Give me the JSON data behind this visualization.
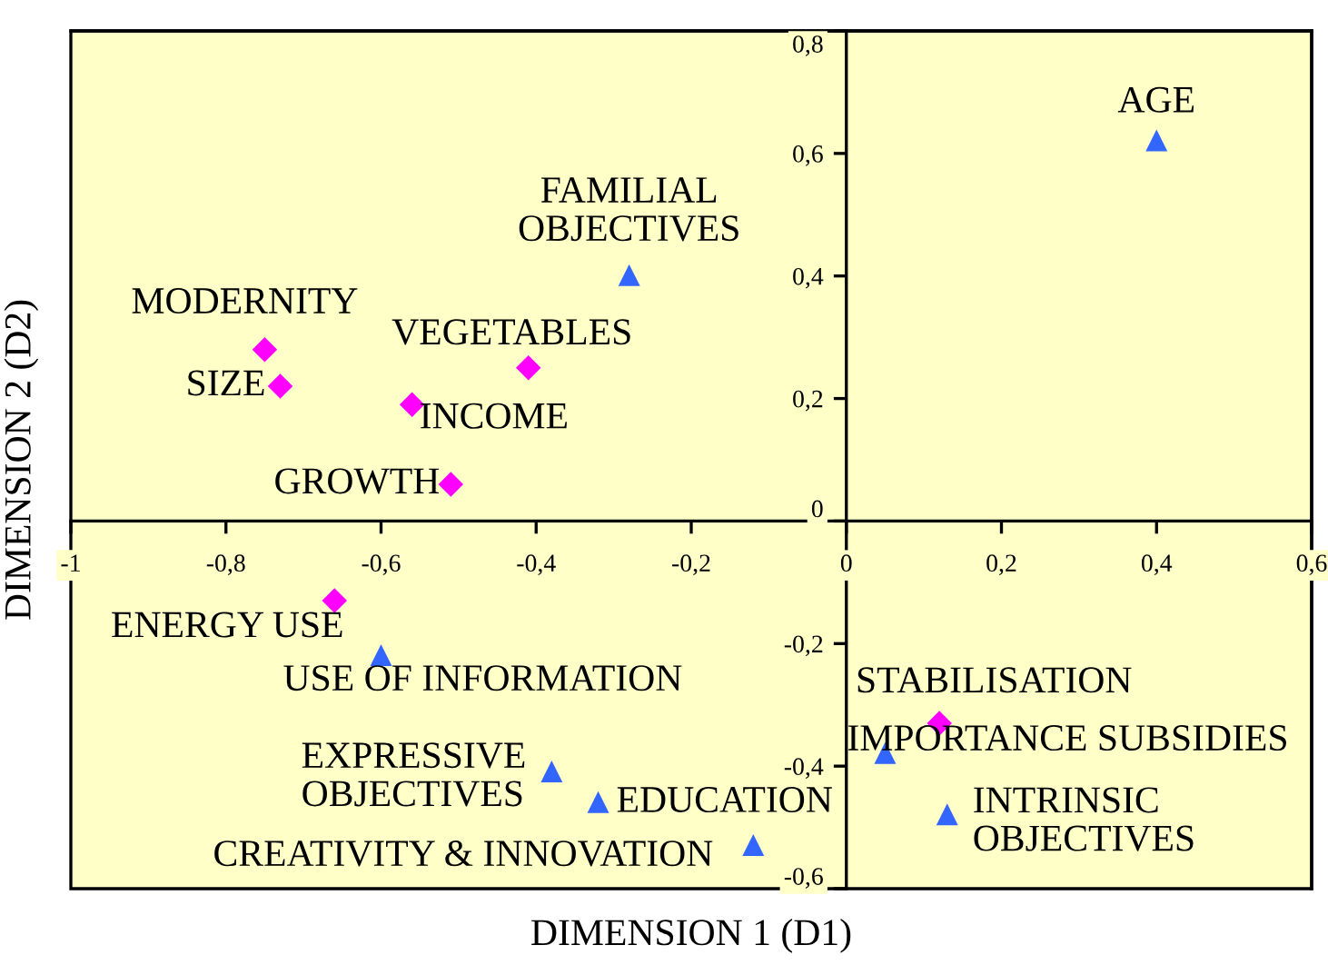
{
  "chart_data": {
    "type": "scatter",
    "xlabel": "DIMENSION 1 (D1)",
    "ylabel": "DIMENSION 2 (D2)",
    "xlim": [
      -1,
      0.6
    ],
    "ylim": [
      -0.6,
      0.8
    ],
    "xticks": [
      {
        "value": -1,
        "label": "-1"
      },
      {
        "value": -0.8,
        "label": "-0,8"
      },
      {
        "value": -0.6,
        "label": "-0,6"
      },
      {
        "value": -0.4,
        "label": "-0,4"
      },
      {
        "value": -0.2,
        "label": "-0,2"
      },
      0,
      {
        "value": 0.2,
        "label": "0,2"
      },
      {
        "value": 0.4,
        "label": "0,4"
      },
      {
        "value": 0.6,
        "label": "0,6"
      }
    ],
    "yticks": [
      {
        "value": -0.6,
        "label": "-0,6"
      },
      {
        "value": -0.4,
        "label": "-0,4"
      },
      {
        "value": -0.2,
        "label": "-0,2"
      },
      0,
      {
        "value": 0.2,
        "label": "0,2"
      },
      {
        "value": 0.4,
        "label": "0,4"
      },
      {
        "value": 0.6,
        "label": "0,6"
      },
      {
        "value": 0.8,
        "label": "0,8"
      }
    ],
    "grid": false,
    "legend": false,
    "series": [
      {
        "color": "#ff00ff",
        "marker": "diamond",
        "x": [
          -0.75,
          -0.73,
          -0.56,
          -0.41,
          -0.51,
          -0.66,
          0.12
        ],
        "values": [
          0.28,
          0.22,
          0.19,
          0.25,
          0.06,
          -0.13,
          -0.33
        ]
      },
      {
        "color": "#3366ff",
        "marker": "triangle",
        "x": [
          0.4,
          -0.28,
          -0.6,
          -0.38,
          -0.32,
          -0.12,
          0.05,
          0.13
        ],
        "values": [
          0.62,
          0.4,
          -0.22,
          -0.41,
          -0.46,
          -0.53,
          -0.38,
          -0.48
        ]
      }
    ],
    "annotations": [
      {
        "text": "AGE",
        "x": 0.4,
        "y": 0.62
      },
      {
        "text": "FAMILIAL\nOBJECTIVES",
        "x": -0.28,
        "y": 0.4
      },
      {
        "text": "MODERNITY",
        "x": -0.75,
        "y": 0.28
      },
      {
        "text": "VEGETABLES",
        "x": -0.41,
        "y": 0.25
      },
      {
        "text": "SIZE",
        "x": -0.73,
        "y": 0.22
      },
      {
        "text": "INCOME",
        "x": -0.56,
        "y": 0.19
      },
      {
        "text": "GROWTH",
        "x": -0.51,
        "y": 0.06
      },
      {
        "text": "ENERGY USE",
        "x": -0.66,
        "y": -0.13
      },
      {
        "text": "USE OF INFORMATION",
        "x": -0.6,
        "y": -0.22
      },
      {
        "text": "STABILISATION",
        "x": 0.12,
        "y": -0.33
      },
      {
        "text": "IMPORTANCE SUBSIDIES",
        "x": 0.05,
        "y": -0.38
      },
      {
        "text": "EXPRESSIVE\nOBJECTIVES",
        "x": -0.38,
        "y": -0.41
      },
      {
        "text": "EDUCATION",
        "x": -0.32,
        "y": -0.46
      },
      {
        "text": "CREATIVITY & INNOVATION",
        "x": -0.12,
        "y": -0.53
      },
      {
        "text": "INTRINSIC\nOBJECTIVES",
        "x": 0.13,
        "y": -0.48
      }
    ]
  }
}
